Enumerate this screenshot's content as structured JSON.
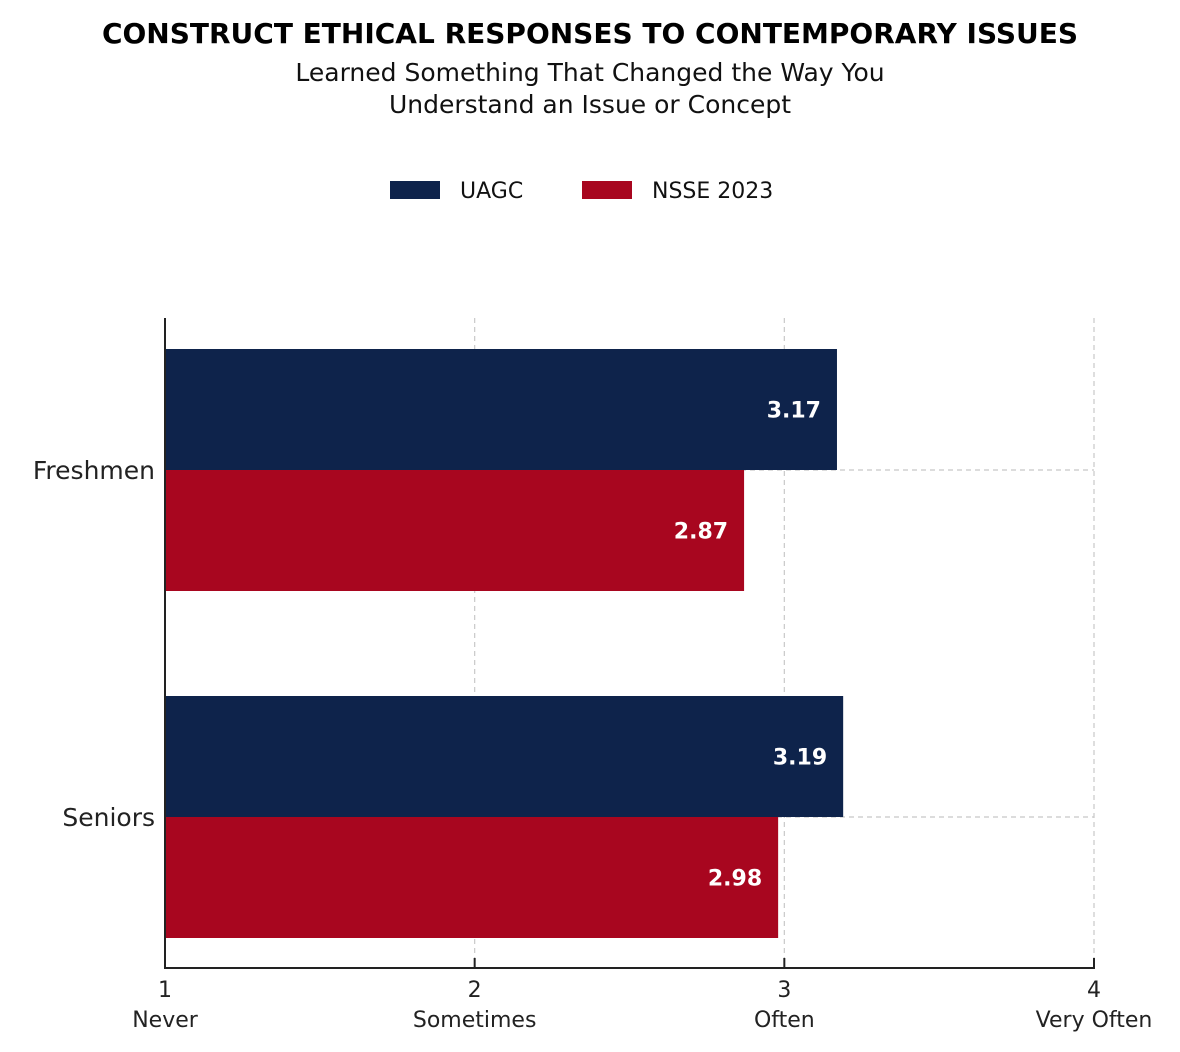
{
  "chart_data": {
    "type": "bar",
    "orientation": "horizontal",
    "title": "CONSTRUCT ETHICAL RESPONSES TO CONTEMPORARY ISSUES",
    "subtitle": [
      "Learned Something That Changed the Way You",
      "Understand an Issue or Concept"
    ],
    "categories": [
      "Freshmen",
      "Seniors"
    ],
    "series": [
      {
        "name": "UAGC",
        "color": "#0e234b",
        "values": [
          3.17,
          3.19
        ],
        "labels": [
          "3.17",
          "3.19"
        ]
      },
      {
        "name": "NSSE 2023",
        "color": "#a8061f",
        "values": [
          2.87,
          2.98
        ],
        "labels": [
          "2.87",
          "2.98"
        ]
      }
    ],
    "xlim": [
      1,
      4
    ],
    "xticks": [
      {
        "value": 1,
        "num": "1",
        "word": "Never"
      },
      {
        "value": 2,
        "num": "2",
        "word": "Sometimes"
      },
      {
        "value": 3,
        "num": "3",
        "word": "Often"
      },
      {
        "value": 4,
        "num": "4",
        "word": "Very Often"
      }
    ],
    "grid": true,
    "legend_position": "top-center"
  }
}
